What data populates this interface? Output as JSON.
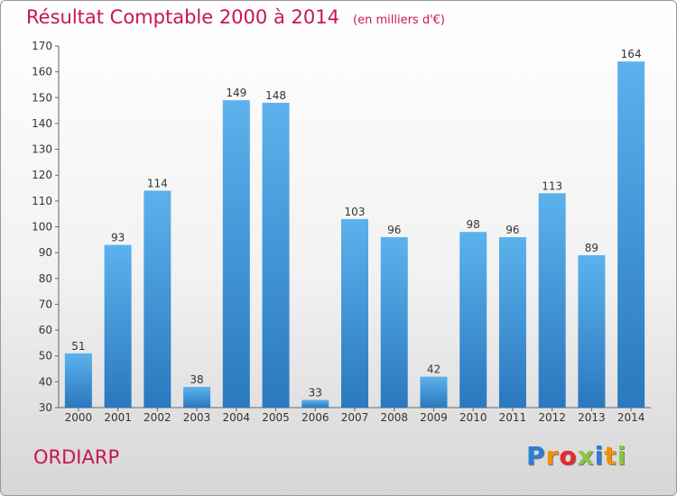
{
  "chart_data": {
    "type": "bar",
    "title": "Résultat Comptable 2000 à 2014",
    "subtitle": "(en milliers d'€)",
    "categories": [
      "2000",
      "2001",
      "2002",
      "2003",
      "2004",
      "2005",
      "2006",
      "2007",
      "2008",
      "2009",
      "2010",
      "2011",
      "2012",
      "2013",
      "2014"
    ],
    "values": [
      51,
      93,
      114,
      38,
      149,
      148,
      33,
      103,
      96,
      42,
      98,
      96,
      113,
      89,
      164
    ],
    "ylim": [
      30,
      170
    ],
    "yticks": [
      30,
      40,
      50,
      60,
      70,
      80,
      90,
      100,
      110,
      120,
      130,
      140,
      150,
      160,
      170
    ],
    "grid": false,
    "bar_color": "#4a9ee0"
  },
  "commune": "ORDIARP",
  "logo": {
    "letters": [
      "P",
      "r",
      "o",
      "x",
      "i",
      "t",
      "i"
    ],
    "colors": [
      "#2b7fd4",
      "#f39200",
      "#e8262b",
      "#8cc63f",
      "#2b7fd4",
      "#f39200",
      "#8cc63f"
    ]
  },
  "colors": {
    "accent": "#c8164f"
  }
}
